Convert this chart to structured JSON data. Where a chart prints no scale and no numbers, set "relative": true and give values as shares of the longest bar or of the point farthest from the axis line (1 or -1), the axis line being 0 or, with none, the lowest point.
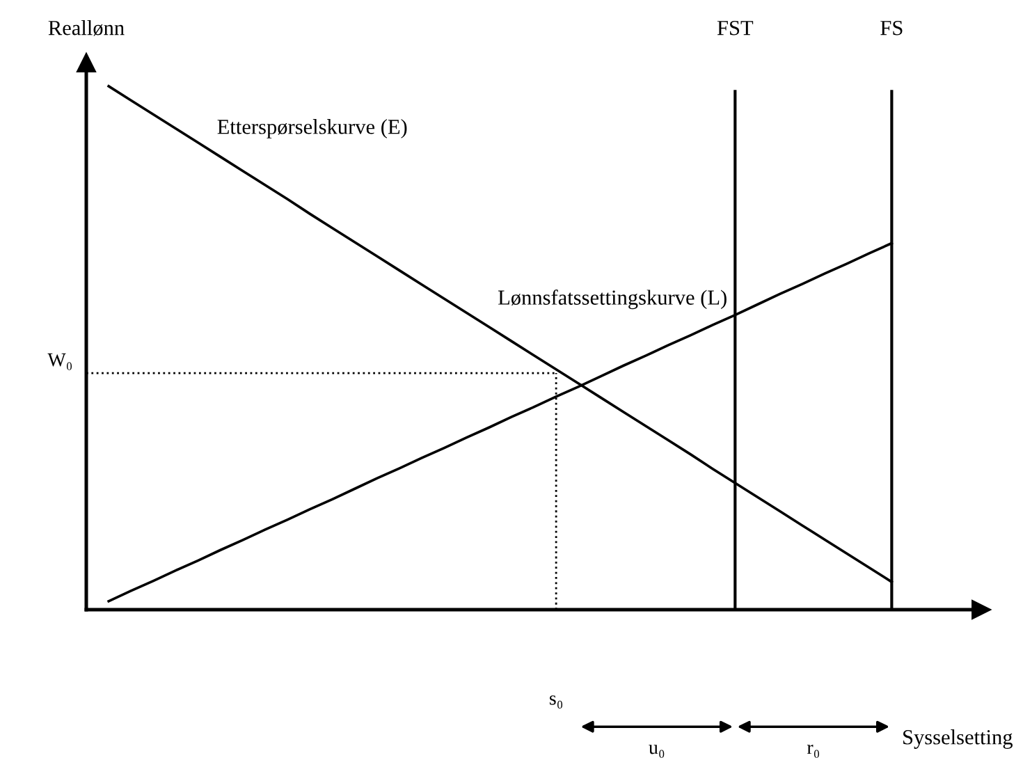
{
  "chart_data": {
    "type": "line",
    "relative": true,
    "marker": "none",
    "ylabel": "Reallønn",
    "annotations": [
      "FST",
      "FS",
      "s₀",
      "u₀",
      "r₀",
      "Sysselsetting"
    ],
    "categories": [
      null,
      null,
      null,
      null,
      null,
      null,
      null,
      null,
      null,
      null,
      null,
      null,
      null,
      null,
      null,
      null,
      null,
      null,
      null,
      null,
      null,
      null,
      null,
      null,
      null,
      null,
      null,
      null,
      null,
      null,
      null,
      null,
      null,
      null,
      null,
      null
    ],
    "series": [
      {
        "name": "Etterspørselskurve (E)",
        "color": "#000000",
        "values": [
          1.0,
          0.973,
          0.946,
          0.919,
          0.892,
          0.865,
          0.838,
          0.811,
          0.784,
          0.756,
          0.729,
          0.702,
          0.675,
          0.648,
          0.621,
          0.594,
          0.567,
          0.54,
          0.513,
          0.486,
          0.459,
          0.432,
          0.405,
          0.378,
          0.351,
          0.324,
          0.297,
          0.269,
          0.242,
          0.215,
          0.188,
          0.161,
          0.134,
          0.107,
          0.08,
          0.053
        ]
      },
      {
        "name": "Lønnsfatssettingskurve (L)",
        "color": "#000000",
        "values": [
          0.016,
          0.036,
          0.055,
          0.075,
          0.094,
          0.114,
          0.133,
          0.153,
          0.172,
          0.192,
          0.211,
          0.231,
          0.251,
          0.27,
          0.29,
          0.309,
          0.329,
          0.348,
          0.368,
          0.387,
          0.407,
          0.426,
          0.446,
          0.466,
          0.485,
          0.505,
          0.524,
          0.544,
          0.563,
          0.583,
          0.603,
          0.622,
          0.642,
          0.661,
          0.681,
          0.7
        ]
      }
    ],
    "ref_lines": [
      {
        "axis": "y",
        "value": 0.452,
        "label": "W₀",
        "color": "#000000",
        "line_style": "dotted"
      }
    ]
  }
}
